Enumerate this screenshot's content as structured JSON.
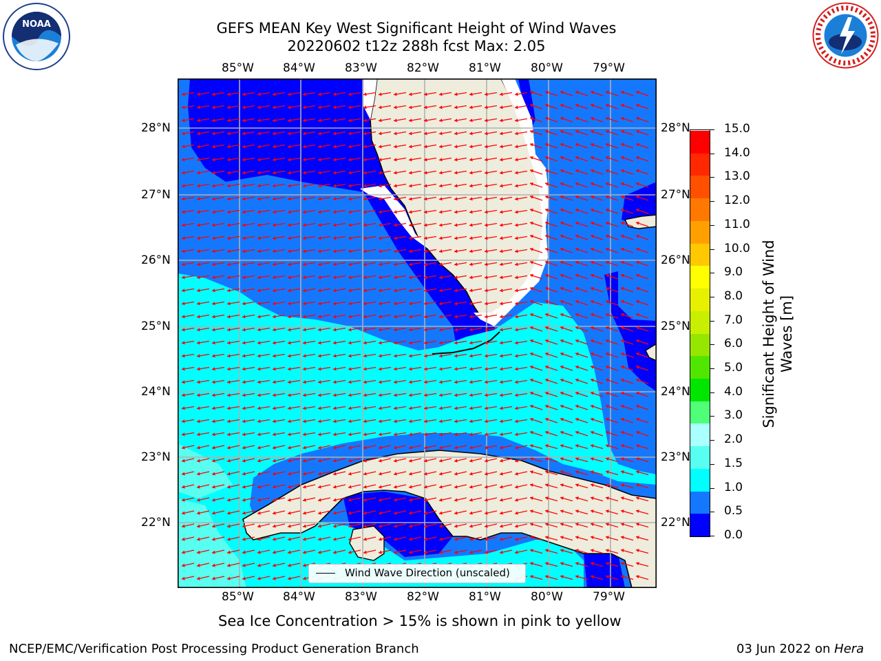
{
  "title": {
    "line1": "GEFS MEAN Key West Significant Height of Wind Waves",
    "line2": "20220602 t12z 288h fcst   Max: 2.05"
  },
  "logos": {
    "left": "NOAA",
    "left_ring_text": "NATIONAL OCEANIC AND ATMOSPHERIC ADMINISTRATION · U.S. DEPARTMENT OF COMMERCE",
    "right_ring_text": "NATIONAL WEATHER SERVICE"
  },
  "map": {
    "longitude_labels": [
      "85°W",
      "84°W",
      "83°W",
      "82°W",
      "81°W",
      "80°W",
      "79°W"
    ],
    "latitude_labels": [
      "28°N",
      "27°N",
      "26°N",
      "25°N",
      "24°N",
      "23°N",
      "22°N"
    ],
    "land_color": "#eeecdc",
    "arrow_color": "#ff0000",
    "grid_color": "#b0b0b0"
  },
  "legend": {
    "label": "Wind Wave Direction (unscaled)"
  },
  "colorbar": {
    "label_line1": "Significant Height of Wind",
    "label_line2": "Waves [m]",
    "ticks": [
      "15.0",
      "14.0",
      "13.0",
      "12.0",
      "11.0",
      "10.0",
      "9.0",
      "8.0",
      "7.0",
      "6.0",
      "5.0",
      "4.0",
      "3.0",
      "2.0",
      "1.5",
      "1.0",
      "0.5",
      "0.0"
    ],
    "colors": [
      "#0000ff",
      "#1478ff",
      "#00ffff",
      "#58fff0",
      "#aaffff",
      "#50ff78",
      "#00e600",
      "#50e600",
      "#96e600",
      "#c8ee00",
      "#e6f000",
      "#ffff00",
      "#ffc800",
      "#ffa000",
      "#ff7800",
      "#ff5000",
      "#ff2800",
      "#ff0000"
    ]
  },
  "note": "Sea Ice Concentration > 15% is shown in pink to yellow",
  "footer": {
    "left": "NCEP/EMC/Verification Post Processing Product Generation Branch",
    "right_prefix": "03 Jun 2022 on ",
    "right_machine": "Hera"
  }
}
